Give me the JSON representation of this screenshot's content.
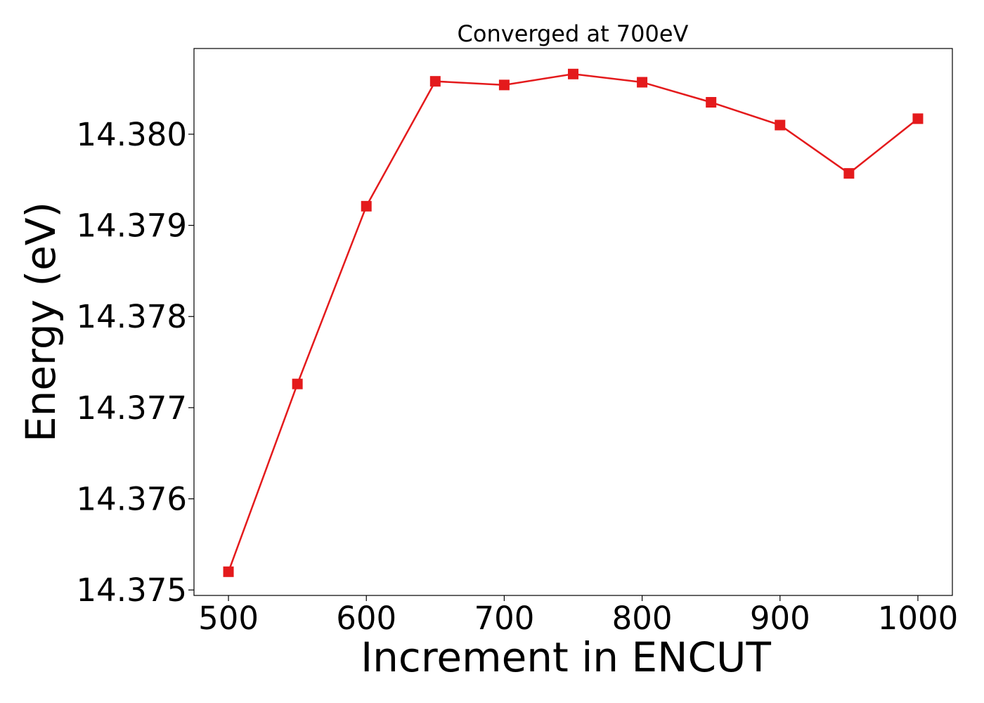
{
  "chart_data": {
    "type": "line",
    "title": "Converged at 700eV",
    "xlabel": "Increment in ENCUT",
    "ylabel": "Energy (eV)",
    "x": [
      500,
      550,
      600,
      650,
      700,
      750,
      800,
      850,
      900,
      950,
      1000
    ],
    "series": [
      {
        "values": [
          14.3752,
          14.37726,
          14.37921,
          14.38058,
          14.38054,
          14.38066,
          14.38057,
          14.38035,
          14.3801,
          14.37957,
          14.38017
        ],
        "color": "#e41a1c",
        "marker": "square"
      }
    ],
    "xlim": [
      475,
      1025
    ],
    "ylim": [
      14.37494,
      14.38094
    ],
    "xticks": [
      500,
      600,
      700,
      800,
      900,
      1000
    ],
    "xtick_labels": [
      "500",
      "600",
      "700",
      "800",
      "900",
      "1000"
    ],
    "yticks": [
      14.375,
      14.376,
      14.377,
      14.378,
      14.379,
      14.38
    ],
    "ytick_labels": [
      "14.375",
      "14.376",
      "14.377",
      "14.378",
      "14.379",
      "14.380"
    ],
    "grid": false,
    "legend": "none"
  }
}
